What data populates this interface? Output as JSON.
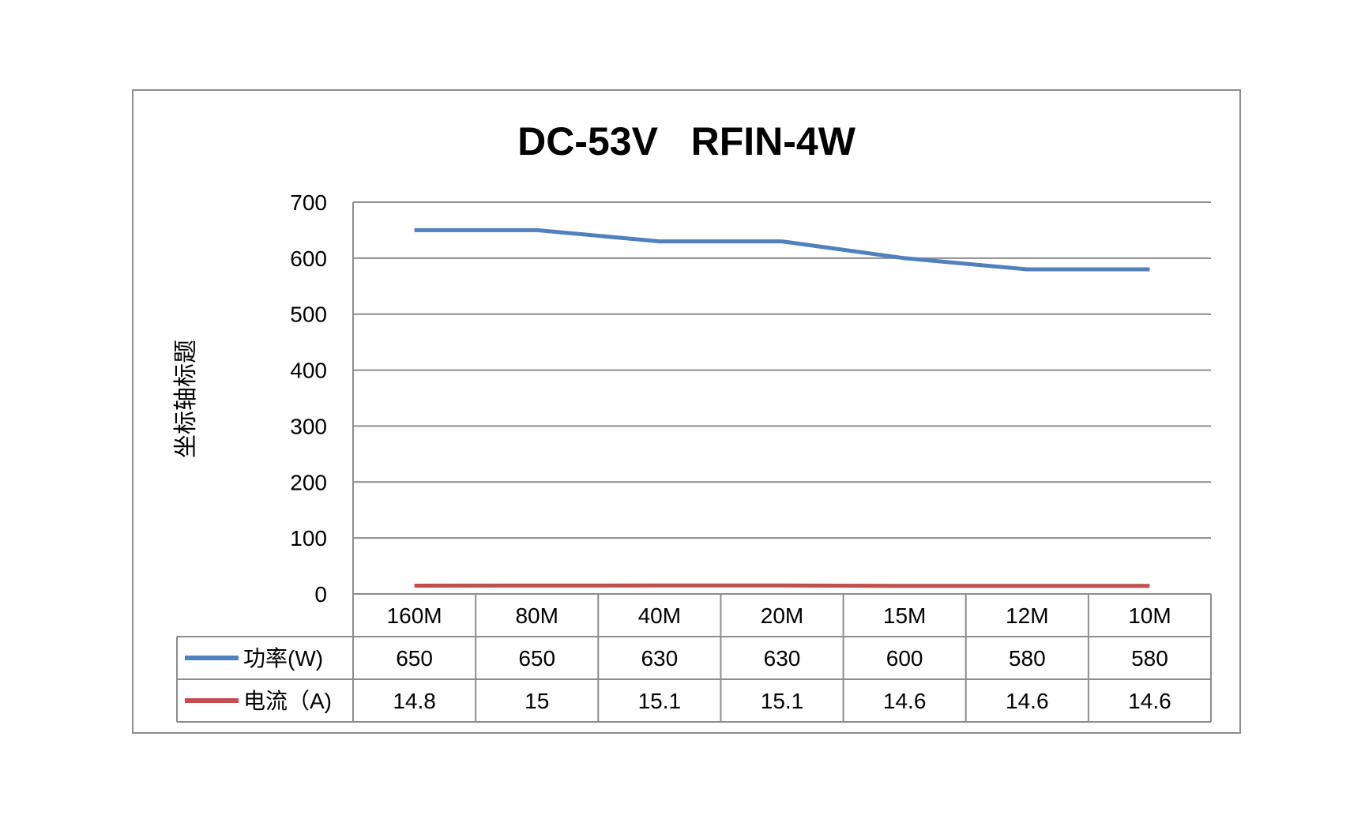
{
  "chart_data": {
    "type": "line",
    "title": "DC-53V   RFIN-4W",
    "ylabel": "坐标轴标题",
    "xlabel": "",
    "ylim": [
      0,
      700
    ],
    "yticks": [
      0,
      100,
      200,
      300,
      400,
      500,
      600,
      700
    ],
    "grid": true,
    "legend": "data-table-left",
    "categories": [
      "160M",
      "80M",
      "40M",
      "20M",
      "15M",
      "12M",
      "10M"
    ],
    "series": [
      {
        "name": "功率(W)",
        "color": "#4f81bd",
        "values": [
          650,
          650,
          630,
          630,
          600,
          580,
          580
        ],
        "labels": [
          "650",
          "650",
          "630",
          "630",
          "600",
          "580",
          "580"
        ]
      },
      {
        "name": "电流（A)",
        "color": "#c0504d",
        "values": [
          14.8,
          15,
          15.1,
          15.1,
          14.6,
          14.6,
          14.6
        ],
        "labels": [
          "14.8",
          "15",
          "15.1",
          "15.1",
          "14.6",
          "14.6",
          "14.6"
        ]
      }
    ]
  }
}
